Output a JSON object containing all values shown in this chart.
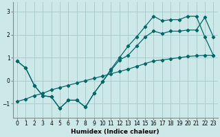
{
  "xlabel": "Humidex (Indice chaleur)",
  "background_color": "#cce8e8",
  "grid_color": "#aacccc",
  "line_color": "#006868",
  "xlim": [
    -0.5,
    23.5
  ],
  "ylim": [
    -1.6,
    3.4
  ],
  "yticks": [
    -1,
    0,
    1,
    2,
    3
  ],
  "xticks": [
    0,
    1,
    2,
    3,
    4,
    5,
    6,
    7,
    8,
    9,
    10,
    11,
    12,
    13,
    14,
    15,
    16,
    17,
    18,
    19,
    20,
    21,
    22,
    23
  ],
  "line1_x": [
    0,
    1,
    2,
    3,
    4,
    5,
    6,
    7,
    8,
    9,
    10,
    11,
    12,
    13,
    14,
    15,
    16,
    17,
    18,
    19,
    20,
    21,
    22,
    23
  ],
  "line1_y": [
    0.85,
    0.55,
    -0.2,
    -0.65,
    -0.7,
    -1.2,
    -0.85,
    -0.85,
    -1.15,
    -0.55,
    -0.05,
    0.45,
    0.9,
    1.1,
    1.5,
    1.9,
    2.15,
    2.05,
    2.15,
    2.15,
    2.2,
    2.2,
    2.75,
    1.9
  ],
  "line2_x": [
    0,
    1,
    2,
    3,
    4,
    5,
    6,
    7,
    8,
    9,
    10,
    11,
    12,
    13,
    14,
    15,
    16,
    17,
    18,
    19,
    20,
    21,
    22,
    23
  ],
  "line2_y": [
    0.85,
    0.55,
    -0.2,
    -0.65,
    -0.7,
    -1.2,
    -0.85,
    -0.85,
    -1.15,
    -0.55,
    -0.05,
    0.5,
    1.0,
    1.5,
    1.9,
    2.35,
    2.8,
    2.6,
    2.65,
    2.65,
    2.8,
    2.8,
    1.9,
    1.1
  ],
  "line3_x": [
    0,
    1,
    2,
    3,
    4,
    5,
    6,
    7,
    8,
    9,
    10,
    11,
    12,
    13,
    14,
    15,
    16,
    17,
    18,
    19,
    20,
    21,
    22,
    23
  ],
  "line3_y": [
    -0.9,
    -0.8,
    -0.65,
    -0.55,
    -0.4,
    -0.3,
    -0.2,
    -0.1,
    0.0,
    0.1,
    0.2,
    0.3,
    0.4,
    0.5,
    0.62,
    0.74,
    0.86,
    0.9,
    0.95,
    1.0,
    1.05,
    1.08,
    1.1,
    1.1
  ]
}
